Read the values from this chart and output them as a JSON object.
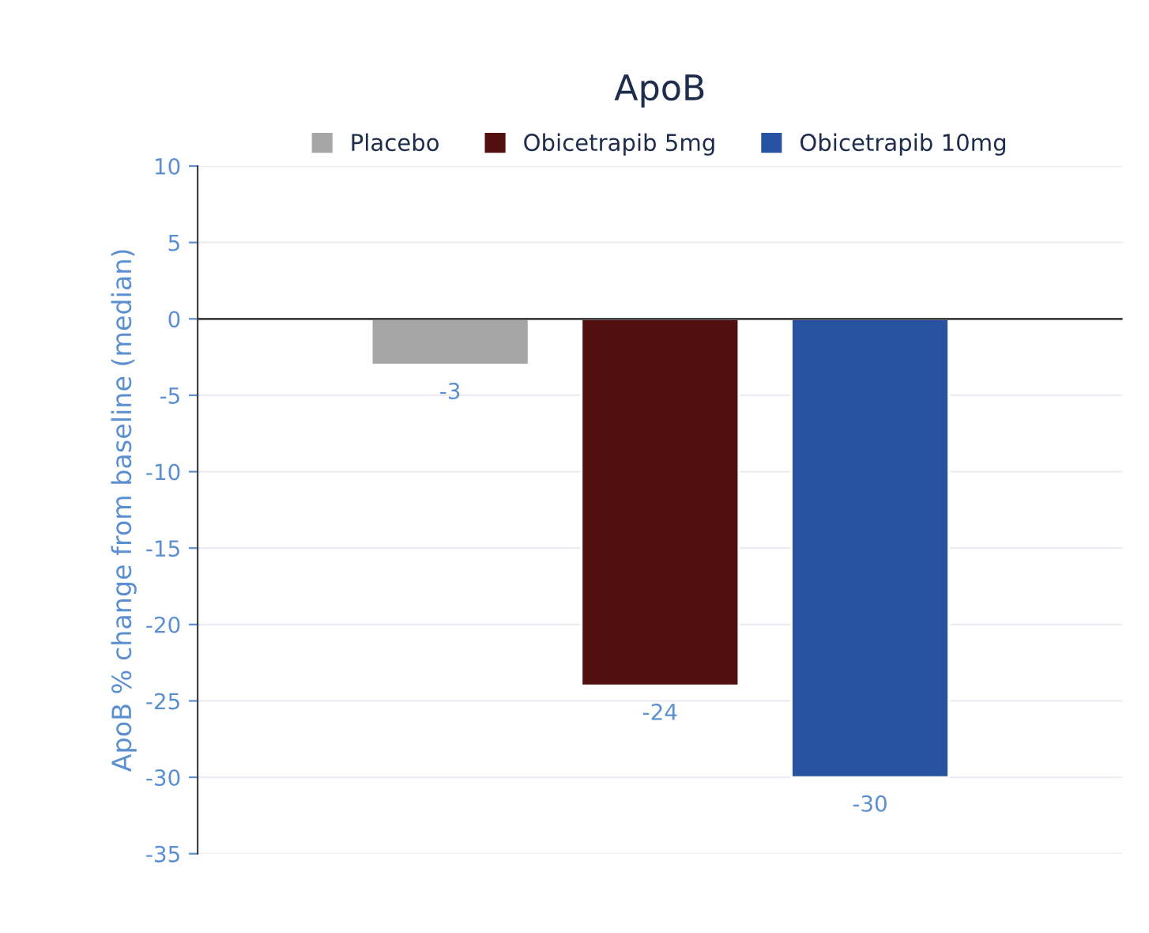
{
  "chart_data": {
    "type": "bar",
    "title": "ApoB",
    "ylabel": "ApoB % change from baseline (median)",
    "categories": [
      null
    ],
    "series": [
      {
        "name": "Placebo",
        "color": "#a6a6a6",
        "values": [
          -3
        ]
      },
      {
        "name": "Obicetrapib 5mg",
        "color": "#520f10",
        "values": [
          -24
        ]
      },
      {
        "name": "Obicetrapib 10mg",
        "color": "#2853a0",
        "values": [
          -30
        ]
      }
    ],
    "ylim": [
      -35,
      10
    ],
    "yticks": [
      -35,
      -30,
      -25,
      -20,
      -15,
      -10,
      -5,
      0,
      5,
      10
    ],
    "data_labels": true,
    "legend": "top",
    "grid": "y"
  }
}
